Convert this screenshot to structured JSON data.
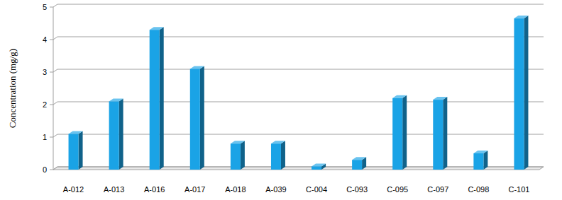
{
  "chart_data": {
    "type": "bar",
    "y_label": "Concentration (mg/g)",
    "categories": [
      "A-012",
      "A-013",
      "A-016",
      "A-017",
      "A-018",
      "A-039",
      "C-004",
      "C-093",
      "C-095",
      "C-097",
      "C-098",
      "C-101"
    ],
    "values": [
      1.1,
      2.1,
      4.3,
      3.1,
      0.8,
      0.8,
      0.1,
      0.3,
      2.2,
      2.15,
      0.5,
      4.65
    ],
    "color": "#1aa3e6",
    "ylim": [
      0,
      5
    ],
    "yticks": [
      0,
      1,
      2,
      3,
      4,
      5
    ],
    "grid": true
  }
}
